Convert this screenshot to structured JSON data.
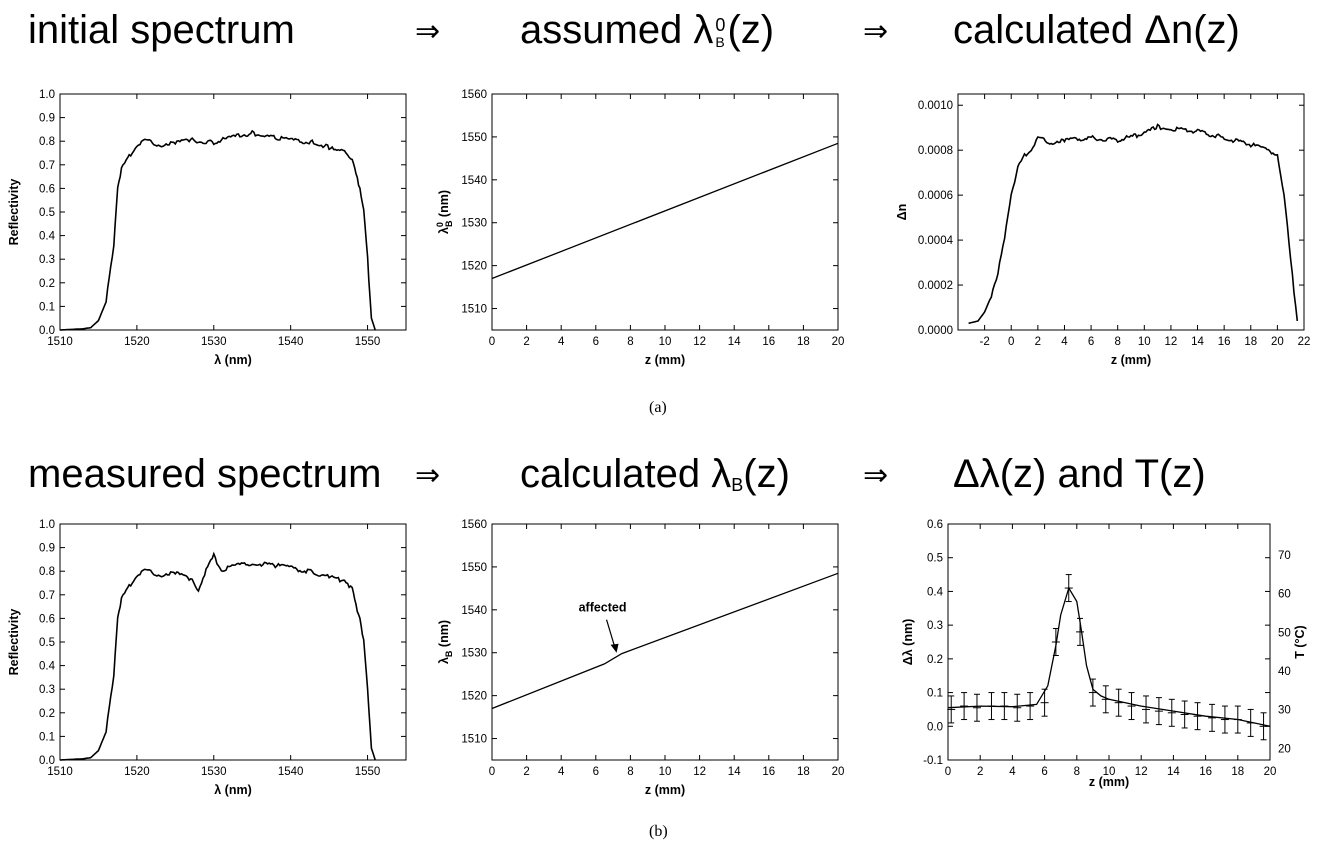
{
  "headers": {
    "a": {
      "h1": "initial spectrum",
      "arrow1": "⇒",
      "h2": {
        "pre": "assumed λ",
        "sup": "0",
        "sub": "B",
        "post": "(z)"
      },
      "arrow2": "⇒",
      "h3": "calculated Δn(z)"
    },
    "b": {
      "h1": "measured spectrum",
      "arrow1": "⇒",
      "h2": {
        "pre": "calculated λ",
        "sub": "B",
        "post": "(z)"
      },
      "arrow2": "⇒",
      "h3": "Δλ(z) and T(z)"
    }
  },
  "captions": {
    "a": "(a)",
    "b": "(b)"
  },
  "chart_data": [
    {
      "type": "line",
      "panel": "a-left",
      "xlabel": "λ (nm)",
      "ylabel": "Reflectivity",
      "xlim": [
        1510,
        1555
      ],
      "ylim": [
        0,
        1
      ],
      "xticks": [
        "1510",
        "1520",
        "1530",
        "1540",
        "1550"
      ],
      "yticks": [
        "0.0",
        "0.1",
        "0.2",
        "0.3",
        "0.4",
        "0.5",
        "0.6",
        "0.7",
        "0.8",
        "0.9",
        "1.0"
      ],
      "x": [
        1510,
        1513,
        1514,
        1515,
        1516,
        1517,
        1517.5,
        1518,
        1519,
        1520,
        1521,
        1523,
        1525,
        1527,
        1530,
        1532,
        1535,
        1538,
        1540,
        1543,
        1545,
        1546,
        1547,
        1548,
        1548.5,
        1549,
        1549.5,
        1550,
        1550.5,
        1551
      ],
      "y": [
        0,
        0.005,
        0.01,
        0.04,
        0.12,
        0.35,
        0.6,
        0.68,
        0.73,
        0.78,
        0.8,
        0.78,
        0.79,
        0.8,
        0.79,
        0.81,
        0.83,
        0.81,
        0.8,
        0.79,
        0.77,
        0.75,
        0.76,
        0.72,
        0.65,
        0.6,
        0.5,
        0.3,
        0.05,
        0
      ]
    },
    {
      "type": "line",
      "panel": "a-mid",
      "xlabel": "z  (mm)",
      "ylabel": {
        "pre": "λ",
        "sup": "0",
        "sub": "B",
        "post": " (nm)"
      },
      "xlim": [
        0,
        20
      ],
      "ylim": [
        1505,
        1560
      ],
      "xticks": [
        "0",
        "2",
        "4",
        "6",
        "8",
        "10",
        "12",
        "14",
        "16",
        "18",
        "20"
      ],
      "yticks": [
        "1510",
        "1520",
        "1530",
        "1540",
        "1550",
        "1560"
      ],
      "x": [
        0,
        20
      ],
      "y": [
        1517,
        1548.5
      ]
    },
    {
      "type": "line",
      "panel": "a-right",
      "xlabel": "z  (mm)",
      "ylabel": "Δn",
      "xlim": [
        -4,
        22
      ],
      "ylim": [
        0,
        0.00105
      ],
      "xticks": [
        "-2",
        "0",
        "2",
        "4",
        "6",
        "8",
        "10",
        "12",
        "14",
        "16",
        "18",
        "20",
        "22"
      ],
      "yticks": [
        "0.0000",
        "0.0002",
        "0.0004",
        "0.0006",
        "0.0008",
        "0.0010"
      ],
      "x": [
        -3.2,
        -2.5,
        -2,
        -1.5,
        -1,
        -0.5,
        0,
        0.5,
        1,
        1.5,
        2,
        3,
        4,
        6,
        8,
        10,
        11,
        12,
        14,
        16,
        18,
        19,
        20,
        20.5,
        21,
        21.5
      ],
      "y": [
        3e-05,
        4e-05,
        8e-05,
        0.00015,
        0.00025,
        0.0004,
        0.0006,
        0.00072,
        0.00077,
        0.0008,
        0.00085,
        0.00083,
        0.00084,
        0.00085,
        0.00084,
        0.00087,
        0.0009,
        0.00089,
        0.00088,
        0.00085,
        0.00082,
        0.0008,
        0.00078,
        0.0006,
        0.0003,
        4e-05
      ]
    },
    {
      "type": "line",
      "panel": "b-left",
      "xlabel": "λ (nm)",
      "ylabel": "Reflectivity",
      "xlim": [
        1510,
        1555
      ],
      "ylim": [
        0,
        1
      ],
      "xticks": [
        "1510",
        "1520",
        "1530",
        "1540",
        "1550"
      ],
      "yticks": [
        "0.0",
        "0.1",
        "0.2",
        "0.3",
        "0.4",
        "0.5",
        "0.6",
        "0.7",
        "0.8",
        "0.9",
        "1.0"
      ],
      "x": [
        1510,
        1513,
        1514,
        1515,
        1516,
        1517,
        1517.5,
        1518,
        1519,
        1520,
        1521,
        1523,
        1525,
        1527,
        1528,
        1529,
        1530,
        1531,
        1533,
        1535,
        1538,
        1540,
        1543,
        1545,
        1546,
        1547,
        1548,
        1548.5,
        1549,
        1549.5,
        1550,
        1550.5,
        1551
      ],
      "y": [
        0,
        0.005,
        0.01,
        0.04,
        0.12,
        0.35,
        0.6,
        0.68,
        0.73,
        0.78,
        0.8,
        0.78,
        0.79,
        0.76,
        0.72,
        0.8,
        0.86,
        0.8,
        0.82,
        0.83,
        0.82,
        0.81,
        0.79,
        0.77,
        0.76,
        0.76,
        0.72,
        0.65,
        0.6,
        0.5,
        0.3,
        0.05,
        0
      ]
    },
    {
      "type": "line",
      "panel": "b-mid",
      "xlabel": "z  (mm)",
      "ylabel": {
        "pre": "λ",
        "sub": "B",
        "post": " (nm)"
      },
      "annotation": "affected",
      "annotation_point": [
        7.2,
        1529.3
      ],
      "xlim": [
        0,
        20
      ],
      "ylim": [
        1505,
        1560
      ],
      "xticks": [
        "0",
        "2",
        "4",
        "6",
        "8",
        "10",
        "12",
        "14",
        "16",
        "18",
        "20"
      ],
      "yticks": [
        "1510",
        "1520",
        "1530",
        "1540",
        "1550",
        "1560"
      ],
      "x": [
        0,
        6.5,
        7.5,
        20
      ],
      "y": [
        1517,
        1527.4,
        1529.8,
        1548.5
      ]
    },
    {
      "type": "scatter",
      "panel": "b-right",
      "xlabel": "z (mm)",
      "ylabel": "Δλ (nm)",
      "y2label": "T (°C)",
      "xlim": [
        0,
        20
      ],
      "ylim": [
        -0.1,
        0.6
      ],
      "y2lim": [
        17,
        78
      ],
      "xticks": [
        "0",
        "2",
        "4",
        "6",
        "8",
        "10",
        "12",
        "14",
        "16",
        "18",
        "20"
      ],
      "yticks": [
        "-0.1",
        "0.0",
        "0.1",
        "0.2",
        "0.3",
        "0.4",
        "0.5",
        "0.6"
      ],
      "y2ticks": [
        "20",
        "30",
        "40",
        "50",
        "60",
        "70"
      ],
      "y_error": 0.04,
      "x": [
        0.2,
        1.0,
        1.8,
        2.7,
        3.5,
        4.3,
        5.1,
        6.0,
        6.7,
        7.5,
        8.2,
        9.0,
        9.8,
        10.6,
        11.4,
        12.3,
        13.1,
        13.9,
        14.7,
        15.5,
        16.4,
        17.2,
        18.0,
        18.8,
        19.6
      ],
      "y": [
        0.05,
        0.06,
        0.055,
        0.06,
        0.06,
        0.055,
        0.06,
        0.07,
        0.25,
        0.41,
        0.28,
        0.1,
        0.08,
        0.07,
        0.06,
        0.05,
        0.045,
        0.04,
        0.035,
        0.03,
        0.025,
        0.02,
        0.02,
        0.01,
        0.0
      ],
      "fit_x": [
        0,
        2,
        4,
        5.5,
        6.2,
        6.7,
        7.0,
        7.5,
        8.0,
        8.3,
        8.6,
        9.0,
        9.5,
        10,
        12,
        14,
        16,
        18,
        20
      ],
      "fit_y": [
        0.055,
        0.06,
        0.058,
        0.065,
        0.12,
        0.24,
        0.33,
        0.41,
        0.37,
        0.28,
        0.18,
        0.11,
        0.09,
        0.08,
        0.06,
        0.045,
        0.03,
        0.02,
        0.0
      ]
    }
  ]
}
